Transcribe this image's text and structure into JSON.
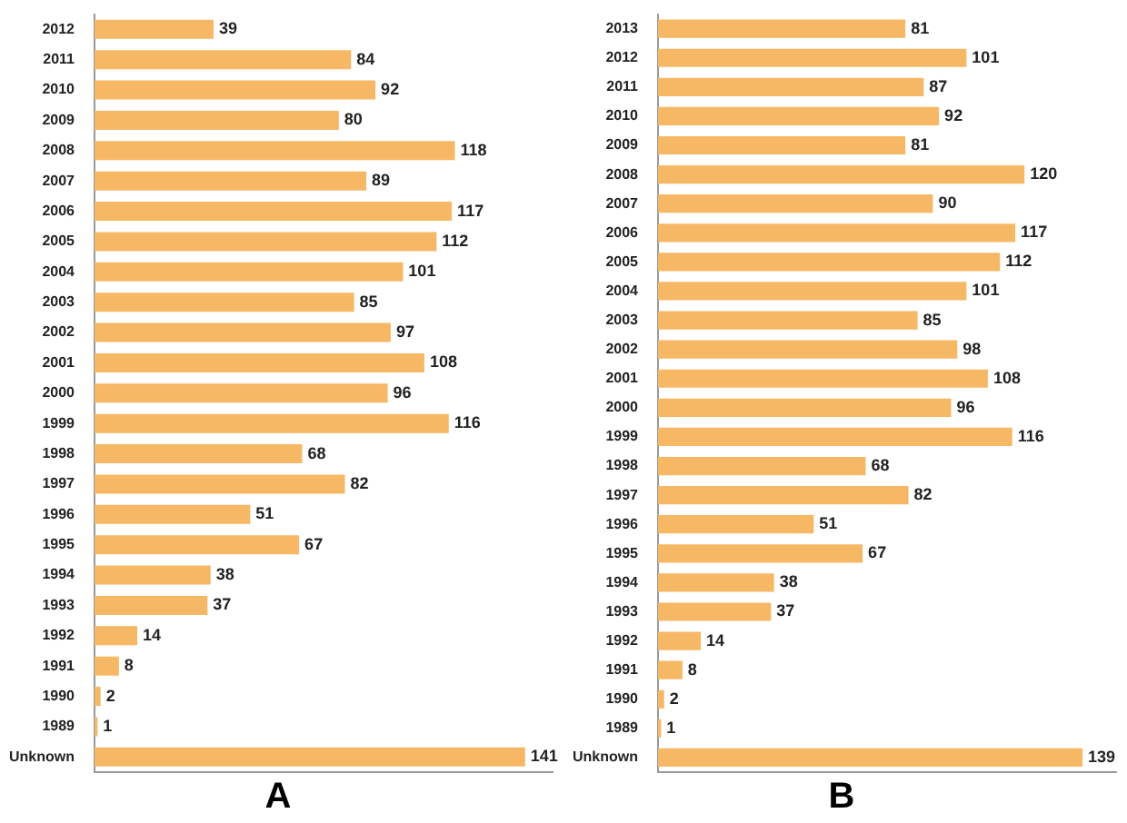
{
  "chart_data": [
    {
      "type": "bar",
      "orientation": "horizontal",
      "title": "A",
      "data_labels": true,
      "color": "#f6b865",
      "categories": [
        "2012",
        "2011",
        "2010",
        "2009",
        "2008",
        "2007",
        "2006",
        "2005",
        "2004",
        "2003",
        "2002",
        "2001",
        "2000",
        "1999",
        "1998",
        "1997",
        "1996",
        "1995",
        "1994",
        "1993",
        "1992",
        "1991",
        "1990",
        "1989",
        "Unknown"
      ],
      "values": [
        39,
        84,
        92,
        80,
        118,
        89,
        117,
        112,
        101,
        85,
        97,
        108,
        96,
        116,
        68,
        82,
        51,
        67,
        38,
        37,
        14,
        8,
        2,
        1,
        141
      ]
    },
    {
      "type": "bar",
      "orientation": "horizontal",
      "title": "B",
      "data_labels": true,
      "color": "#f6b865",
      "categories": [
        "2013",
        "2012",
        "2011",
        "2010",
        "2009",
        "2008",
        "2007",
        "2006",
        "2005",
        "2004",
        "2003",
        "2002",
        "2001",
        "2000",
        "1999",
        "1998",
        "1997",
        "1996",
        "1995",
        "1994",
        "1993",
        "1992",
        "1991",
        "1990",
        "1989",
        "Unknown"
      ],
      "values": [
        81,
        101,
        87,
        92,
        81,
        120,
        90,
        117,
        112,
        101,
        85,
        98,
        108,
        96,
        116,
        68,
        82,
        51,
        67,
        38,
        37,
        14,
        8,
        2,
        1,
        139
      ]
    }
  ]
}
